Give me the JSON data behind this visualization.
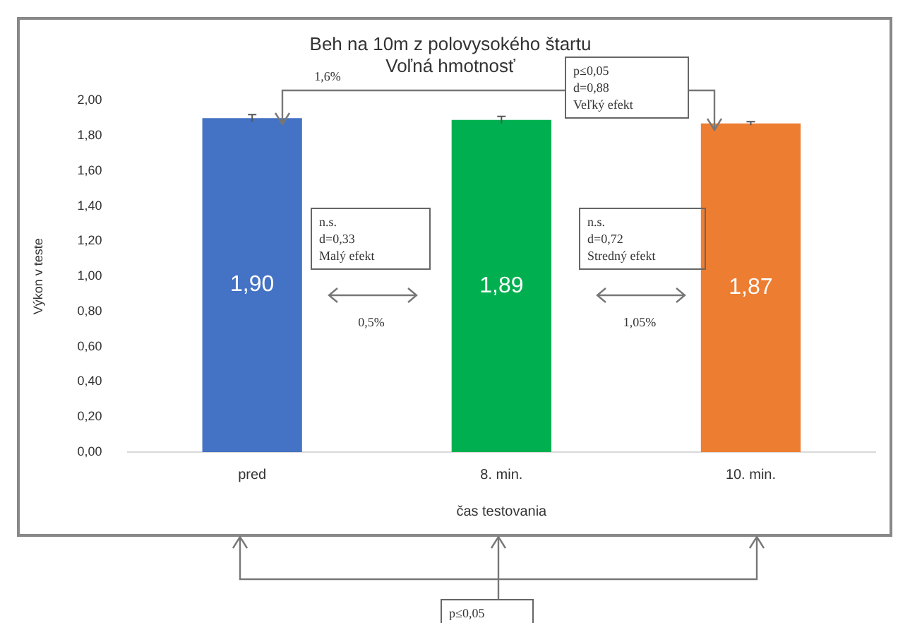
{
  "chart_data": {
    "type": "bar",
    "title": "Beh na 10m z polovysokého štartu\nVoľná hmotnosť",
    "xlabel": "čas testovania",
    "ylabel": "Výkon v teste",
    "categories": [
      "pred",
      "8. min.",
      "10. min."
    ],
    "values": [
      1.9,
      1.89,
      1.87
    ],
    "colors": [
      "#4472c4",
      "#00b050",
      "#ed7d31"
    ],
    "errors": [
      0.02,
      0.02,
      0.01
    ],
    "value_labels": [
      "1,90",
      "1,89",
      "1,87"
    ],
    "ylim": [
      0,
      2
    ],
    "yticks": [
      {
        "value": 0,
        "label": "0,00"
      },
      {
        "value": 0.2,
        "label": "0,20"
      },
      {
        "value": 0.4,
        "label": "0,40"
      },
      {
        "value": 0.6,
        "label": "0,60"
      },
      {
        "value": 0.8,
        "label": "0,80"
      },
      {
        "value": 1,
        "label": "1,00"
      },
      {
        "value": 1.2,
        "label": "1,20"
      },
      {
        "value": 1.4,
        "label": "1,40"
      },
      {
        "value": 1.6,
        "label": "1,60"
      },
      {
        "value": 1.8,
        "label": "1,80"
      },
      {
        "value": 2,
        "label": "2,00"
      }
    ],
    "annotations": [
      "1,6%",
      "p≤0,05\nd=0,88\nVeľký efekt",
      "n.s.\nd=0,33\nMalý efekt",
      "0,5%",
      "n.s.\nd=0,72\nStredný efekt",
      "1,05%",
      "p≤0,05"
    ]
  }
}
